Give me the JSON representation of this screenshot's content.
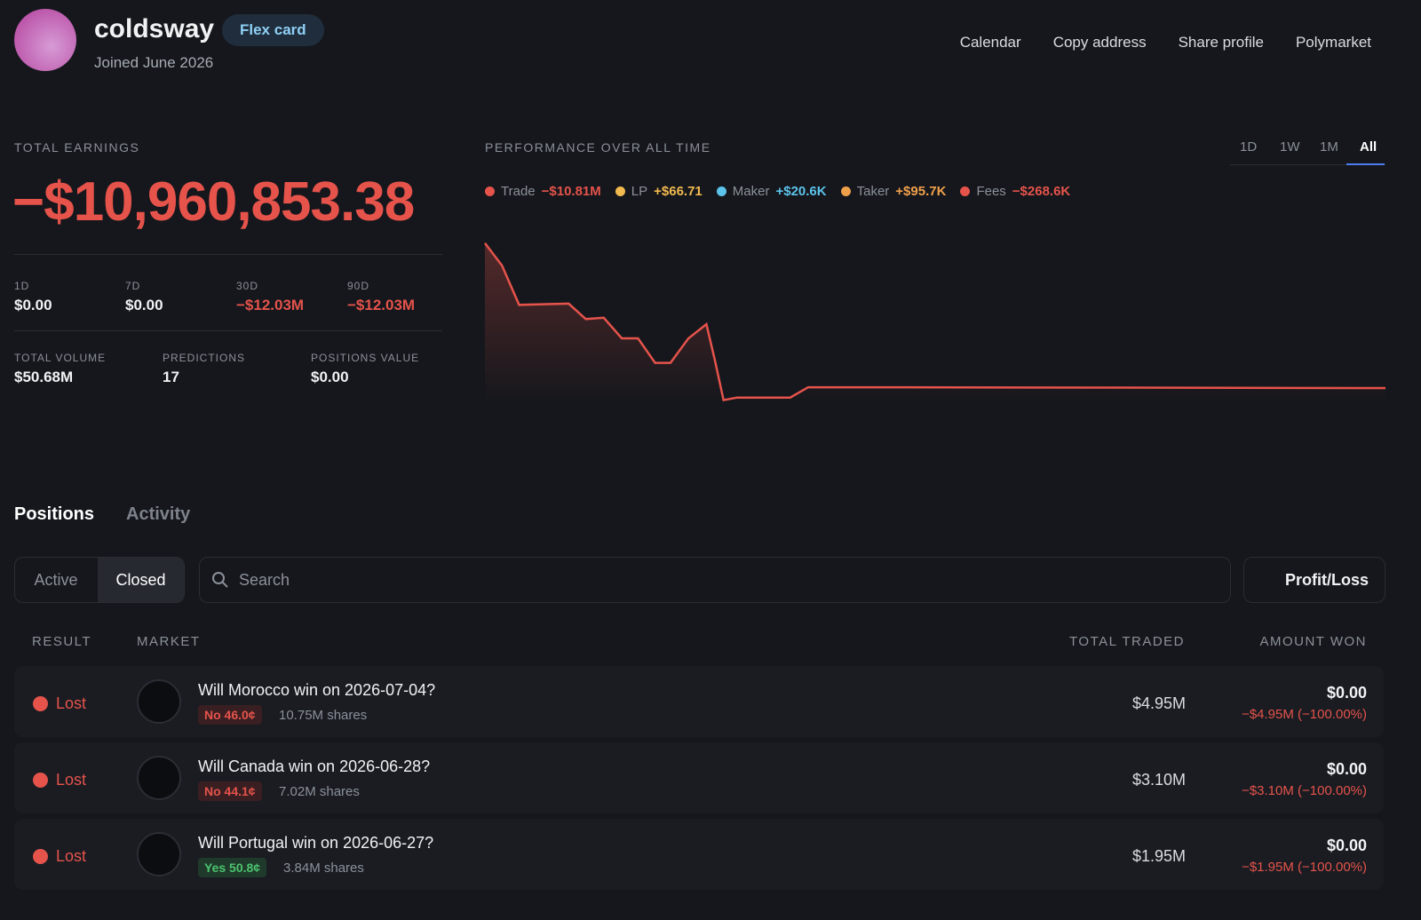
{
  "profile": {
    "name": "coldsway",
    "badge": "Flex card",
    "joined": "Joined June 2026"
  },
  "nav": [
    "Calendar",
    "Copy address",
    "Share profile",
    "Polymarket"
  ],
  "earnings": {
    "label": "TOTAL EARNINGS",
    "value": "−$10,960,853.38",
    "periods": [
      {
        "label": "1D",
        "value": "$0.00"
      },
      {
        "label": "7D",
        "value": "$0.00"
      },
      {
        "label": "30D",
        "value": "−$12.03M"
      },
      {
        "label": "90D",
        "value": "−$12.03M"
      }
    ],
    "stats": [
      {
        "label": "TOTAL VOLUME",
        "value": "$50.68M"
      },
      {
        "label": "PREDICTIONS",
        "value": "17"
      },
      {
        "label": "POSITIONS VALUE",
        "value": "$0.00"
      }
    ]
  },
  "chart_data": {
    "type": "line",
    "title": "PERFORMANCE OVER ALL TIME",
    "ranges": [
      "1D",
      "1W",
      "1M",
      "All"
    ],
    "legend": [
      {
        "name": "Trade",
        "label": "−$10.81M",
        "color": "#e5534b"
      },
      {
        "name": "LP",
        "label": "+$66.71",
        "color": "#f2b94f"
      },
      {
        "name": "Maker",
        "label": "+$20.6K",
        "color": "#5cc3eb"
      },
      {
        "name": "Taker",
        "label": "+$95.7K",
        "color": "#f0a04b"
      },
      {
        "name": "Fees",
        "label": "−$268.6K",
        "color": "#e5534b"
      }
    ],
    "xlim": [
      0,
      100
    ],
    "ylim": [
      -12.2,
      0.9
    ],
    "series": [
      {
        "color": "#e5534b",
        "x": [
          0,
          1.9,
          3.8,
          9.3,
          11.2,
          13.2,
          15.2,
          17,
          18.9,
          20.6,
          22.6,
          24.6,
          25.5,
          26.5,
          28,
          33.9,
          35.9,
          44.8,
          100
        ],
        "values": [
          0.3,
          -1.45,
          -4.5,
          -4.4,
          -5.6,
          -5.5,
          -7.1,
          -7.1,
          -9.0,
          -9.0,
          -7.1,
          -6.0,
          -8.7,
          -11.9,
          -11.7,
          -11.7,
          -10.9,
          -10.9,
          -10.96
        ]
      }
    ]
  },
  "tabs": [
    "Positions",
    "Activity"
  ],
  "filters": [
    "Active",
    "Closed"
  ],
  "search": "Search",
  "sort": "Profit/Loss",
  "table": {
    "headers": [
      "RESULT",
      "MARKET",
      "TOTAL TRADED",
      "AMOUNT WON"
    ],
    "rows": [
      {
        "result": "Lost",
        "market": "Will Morocco win on 2026-07-04?",
        "outcome": "No 46.0¢",
        "shares": "10.75M shares",
        "traded": "$4.95M",
        "won": "$0.00",
        "change": "−$4.95M (−100.00%)"
      },
      {
        "result": "Lost",
        "market": "Will Canada win on 2026-06-28?",
        "outcome": "No 44.1¢",
        "shares": "7.02M shares",
        "traded": "$3.10M",
        "won": "$0.00",
        "change": "−$3.10M (−100.00%)"
      },
      {
        "result": "Lost",
        "market": "Will Portugal win on 2026-06-27?",
        "outcome": "Yes 50.8¢",
        "shares": "3.84M shares",
        "traded": "$1.95M",
        "won": "$0.00",
        "change": "−$1.95M (−100.00%)"
      }
    ]
  }
}
